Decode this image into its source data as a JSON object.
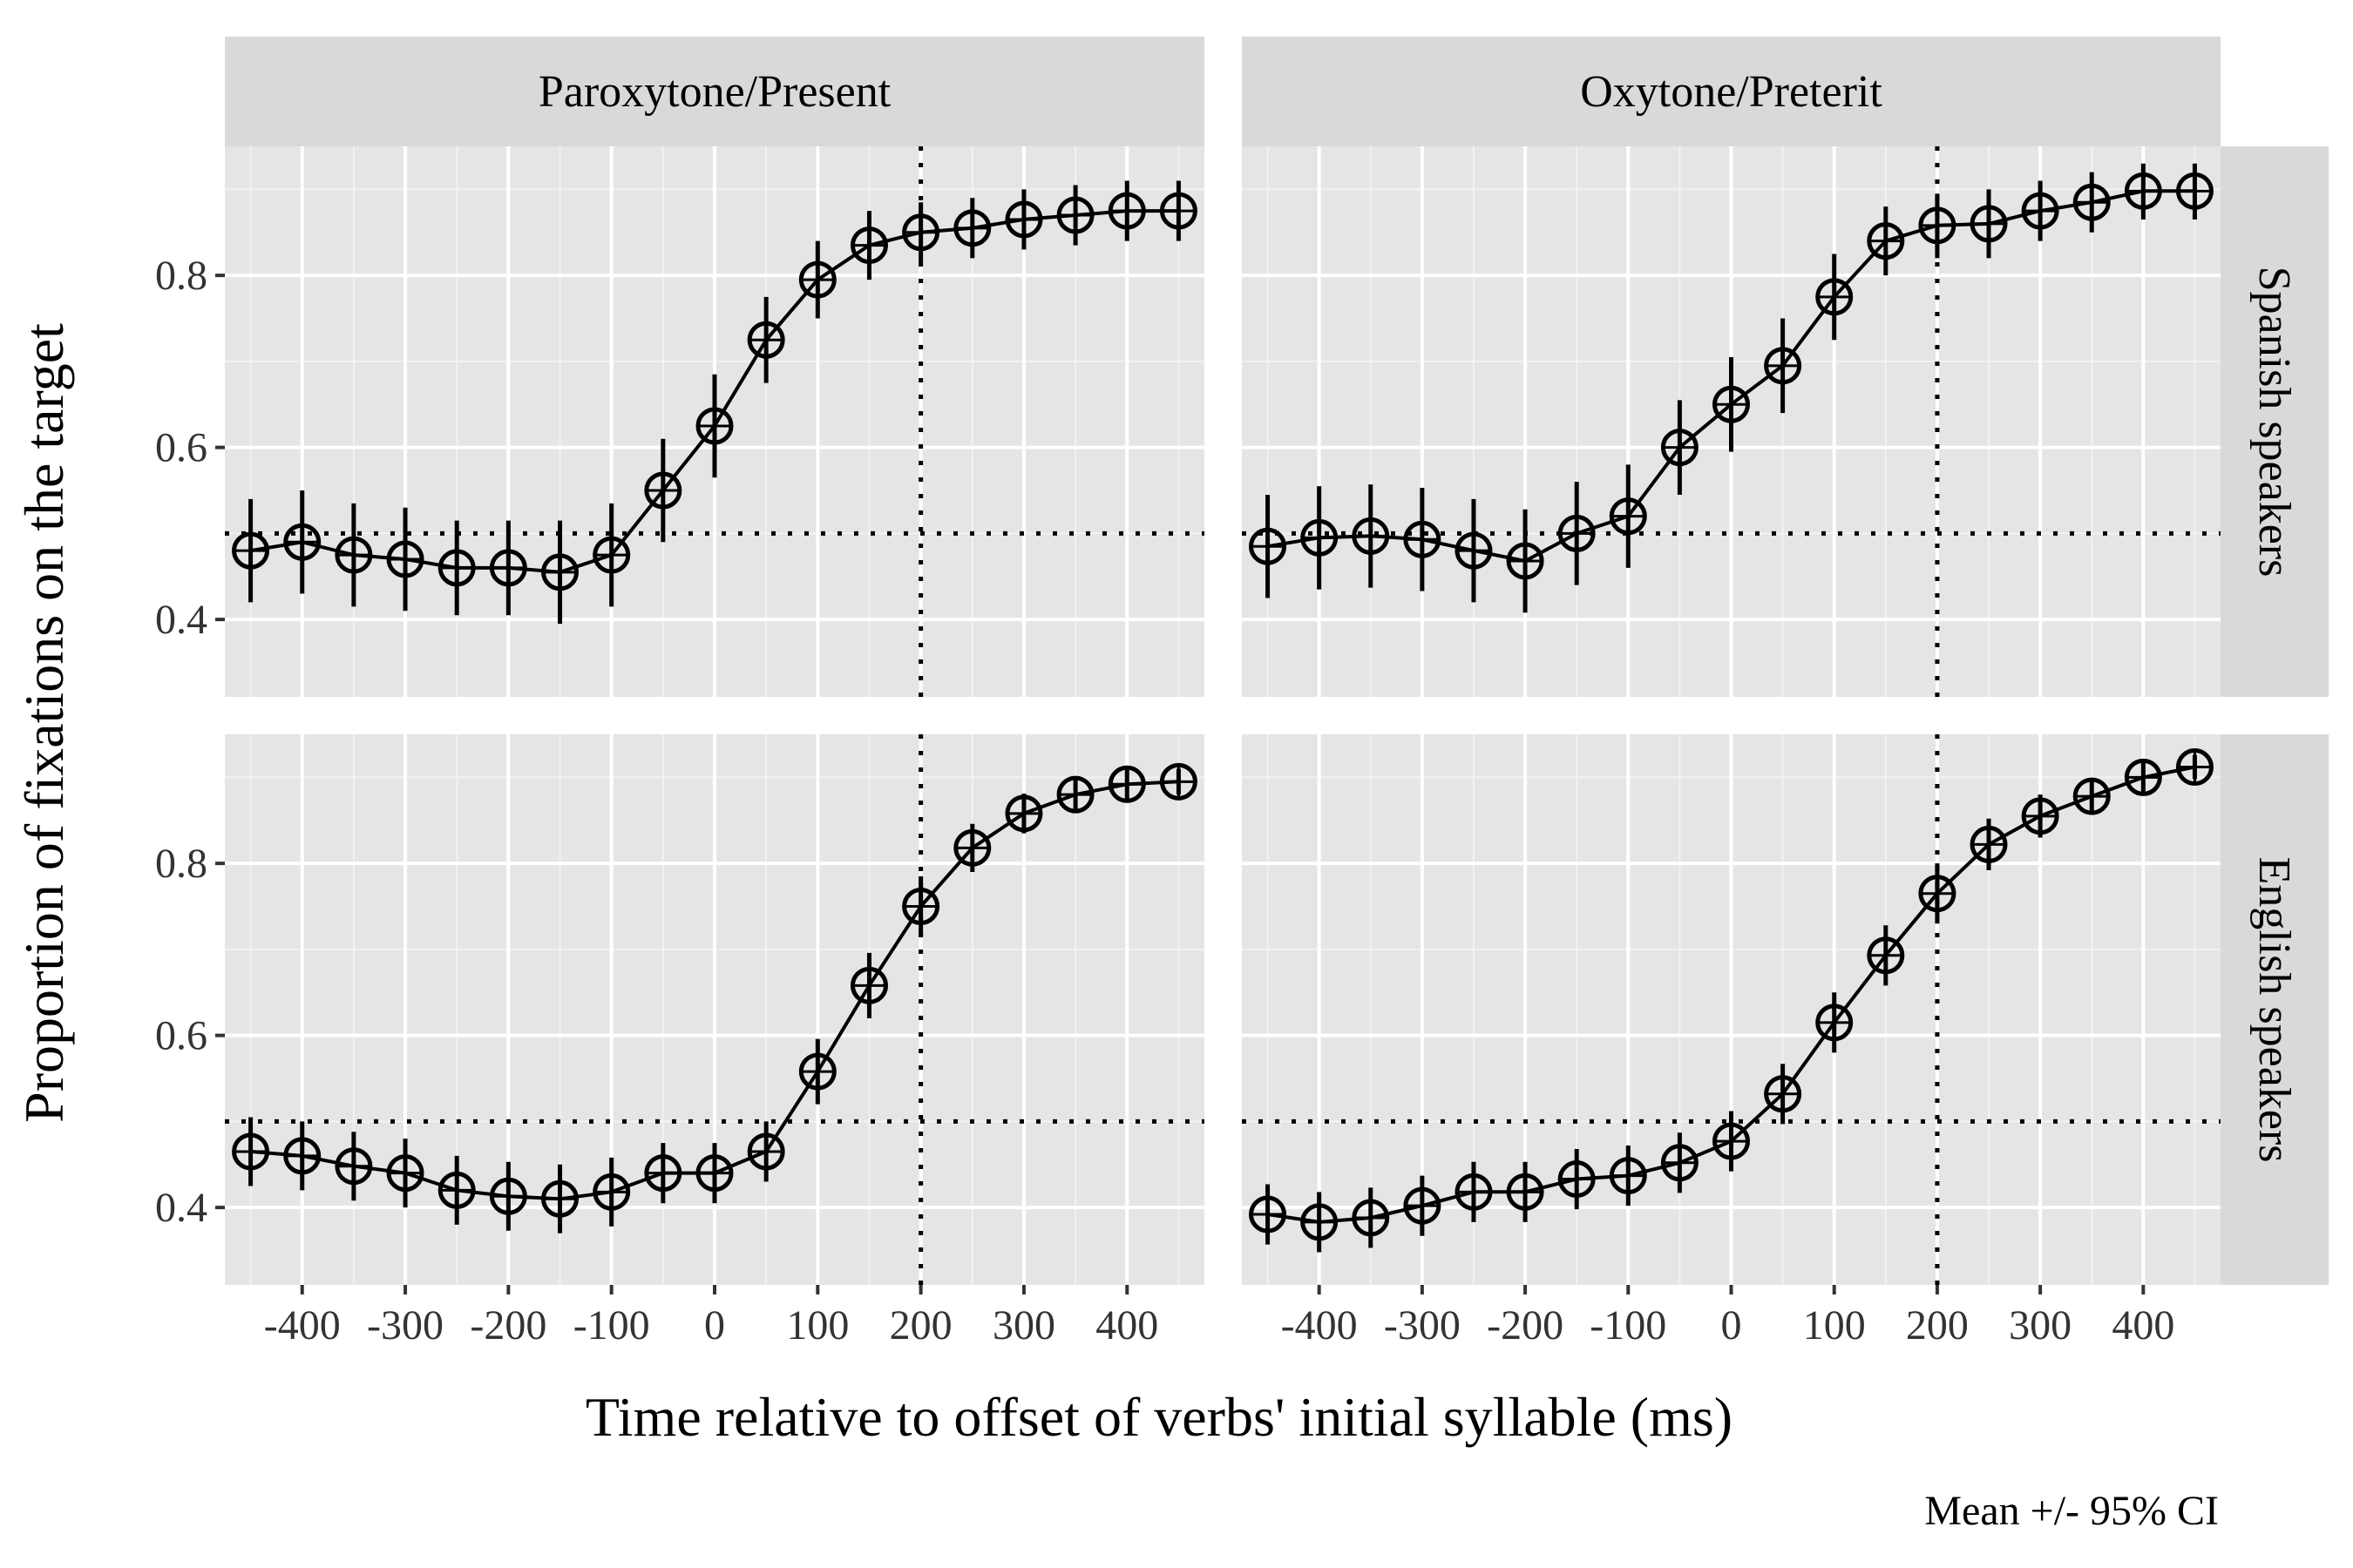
{
  "chart_data": {
    "type": "line",
    "xlabel": "Time relative to offset of verbs' initial syllable (ms)",
    "ylabel": "Proportion of fixations on the target",
    "caption": "Mean +/- 95% CI",
    "column_facets": [
      "Paroxytone/Present",
      "Oxytone/Preterit"
    ],
    "row_facets": [
      "Spanish speakers",
      "English speakers"
    ],
    "xlim": [
      -475,
      475
    ],
    "ylim": [
      0.31,
      0.95
    ],
    "x_ticks": [
      -400,
      -300,
      -200,
      -100,
      0,
      100,
      200,
      300,
      400
    ],
    "x_tick_labels": [
      "-400",
      "-300",
      "-200",
      "-100",
      "0",
      "100",
      "200",
      "300",
      "400"
    ],
    "y_ticks": [
      0.4,
      0.6,
      0.8
    ],
    "y_tick_labels": [
      "0.4",
      "0.6",
      "0.8"
    ],
    "reference_lines": {
      "horizontal_y": 0.5,
      "vertical_x": 200,
      "style": "dotted"
    },
    "x": [
      -450,
      -400,
      -350,
      -300,
      -250,
      -200,
      -150,
      -100,
      -50,
      0,
      50,
      100,
      150,
      200,
      250,
      300,
      350,
      400,
      450
    ],
    "panels": [
      {
        "row": "Spanish speakers",
        "column": "Paroxytone/Present",
        "mean": [
          0.48,
          0.49,
          0.475,
          0.47,
          0.46,
          0.46,
          0.455,
          0.475,
          0.55,
          0.625,
          0.725,
          0.795,
          0.835,
          0.85,
          0.855,
          0.865,
          0.87,
          0.875,
          0.875
        ],
        "lower": [
          0.42,
          0.43,
          0.415,
          0.41,
          0.405,
          0.405,
          0.395,
          0.415,
          0.49,
          0.565,
          0.675,
          0.75,
          0.795,
          0.815,
          0.82,
          0.83,
          0.835,
          0.84,
          0.84
        ],
        "upper": [
          0.54,
          0.55,
          0.535,
          0.53,
          0.515,
          0.515,
          0.515,
          0.535,
          0.61,
          0.685,
          0.775,
          0.84,
          0.875,
          0.885,
          0.89,
          0.9,
          0.905,
          0.91,
          0.91
        ]
      },
      {
        "row": "Spanish speakers",
        "column": "Oxytone/Preterit",
        "mean": [
          0.485,
          0.495,
          0.497,
          0.493,
          0.48,
          0.468,
          0.5,
          0.52,
          0.6,
          0.65,
          0.695,
          0.775,
          0.84,
          0.858,
          0.86,
          0.875,
          0.885,
          0.898,
          0.898
        ],
        "lower": [
          0.425,
          0.435,
          0.437,
          0.433,
          0.42,
          0.408,
          0.44,
          0.46,
          0.545,
          0.595,
          0.64,
          0.725,
          0.8,
          0.82,
          0.82,
          0.84,
          0.85,
          0.865,
          0.865
        ],
        "upper": [
          0.545,
          0.555,
          0.557,
          0.553,
          0.54,
          0.528,
          0.56,
          0.58,
          0.655,
          0.705,
          0.75,
          0.825,
          0.88,
          0.895,
          0.9,
          0.91,
          0.92,
          0.93,
          0.93
        ]
      },
      {
        "row": "English speakers",
        "column": "Paroxytone/Present",
        "mean": [
          0.465,
          0.46,
          0.448,
          0.44,
          0.42,
          0.413,
          0.41,
          0.418,
          0.44,
          0.44,
          0.465,
          0.558,
          0.658,
          0.75,
          0.818,
          0.858,
          0.88,
          0.892,
          0.895
        ],
        "lower": [
          0.425,
          0.42,
          0.408,
          0.4,
          0.38,
          0.373,
          0.37,
          0.378,
          0.405,
          0.405,
          0.43,
          0.52,
          0.62,
          0.715,
          0.79,
          0.835,
          0.86,
          0.875,
          0.88
        ],
        "upper": [
          0.505,
          0.5,
          0.488,
          0.48,
          0.46,
          0.453,
          0.45,
          0.458,
          0.475,
          0.475,
          0.5,
          0.596,
          0.696,
          0.785,
          0.846,
          0.881,
          0.9,
          0.909,
          0.91
        ]
      },
      {
        "row": "English speakers",
        "column": "Oxytone/Preterit",
        "mean": [
          0.392,
          0.383,
          0.388,
          0.402,
          0.418,
          0.418,
          0.433,
          0.437,
          0.452,
          0.477,
          0.532,
          0.615,
          0.693,
          0.765,
          0.822,
          0.855,
          0.878,
          0.9,
          0.912
        ],
        "lower": [
          0.357,
          0.348,
          0.353,
          0.367,
          0.383,
          0.383,
          0.398,
          0.402,
          0.417,
          0.442,
          0.497,
          0.58,
          0.658,
          0.73,
          0.792,
          0.83,
          0.857,
          0.883,
          0.898
        ],
        "upper": [
          0.427,
          0.418,
          0.423,
          0.437,
          0.453,
          0.453,
          0.468,
          0.472,
          0.487,
          0.512,
          0.567,
          0.65,
          0.728,
          0.8,
          0.852,
          0.88,
          0.899,
          0.917,
          0.926
        ]
      }
    ]
  }
}
